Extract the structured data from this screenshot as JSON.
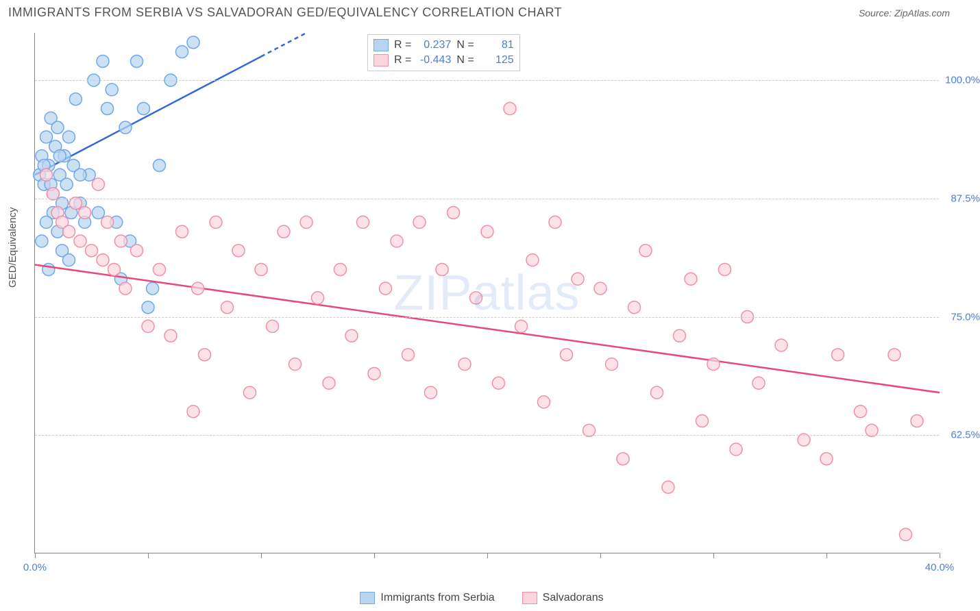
{
  "header": {
    "title": "IMMIGRANTS FROM SERBIA VS SALVADORAN GED/EQUIVALENCY CORRELATION CHART",
    "source_label": "Source: ZipAtlas.com"
  },
  "chart": {
    "type": "scatter",
    "ylabel": "GED/Equivalency",
    "xlim": [
      0,
      40
    ],
    "ylim": [
      50,
      105
    ],
    "x_ticks": [
      0,
      5,
      10,
      15,
      20,
      25,
      30,
      35,
      40
    ],
    "x_tick_labels": {
      "0": "0.0%",
      "40": "40.0%"
    },
    "y_gridlines": [
      62.5,
      75.0,
      87.5,
      100.0
    ],
    "y_tick_labels": [
      "62.5%",
      "75.0%",
      "87.5%",
      "100.0%"
    ],
    "grid_color": "#cccccc",
    "axis_color": "#888888",
    "background_color": "#ffffff",
    "watermark": "ZIPatlas",
    "series": [
      {
        "name": "Immigrants from Serbia",
        "marker_fill": "#b8d4f0",
        "marker_stroke": "#6fa8e8",
        "marker_radius": 9,
        "marker_opacity": 0.7,
        "line_color": "#3168d8",
        "line_width": 2.5,
        "R": "0.237",
        "N": "81",
        "trend": {
          "x1": 0,
          "y1": 90,
          "x2": 12,
          "y2": 105,
          "dash_after_x": 10
        },
        "points": [
          [
            0.2,
            90
          ],
          [
            0.3,
            92
          ],
          [
            0.4,
            89
          ],
          [
            0.5,
            94
          ],
          [
            0.6,
            91
          ],
          [
            0.7,
            96
          ],
          [
            0.8,
            88
          ],
          [
            0.9,
            93
          ],
          [
            1.0,
            95
          ],
          [
            1.1,
            90
          ],
          [
            1.2,
            87
          ],
          [
            1.3,
            92
          ],
          [
            1.4,
            89
          ],
          [
            1.5,
            94
          ],
          [
            1.6,
            86
          ],
          [
            1.7,
            91
          ],
          [
            1.8,
            98
          ],
          [
            2.0,
            87
          ],
          [
            2.2,
            85
          ],
          [
            2.4,
            90
          ],
          [
            2.6,
            100
          ],
          [
            2.8,
            86
          ],
          [
            3.0,
            102
          ],
          [
            3.2,
            97
          ],
          [
            3.4,
            99
          ],
          [
            3.6,
            85
          ],
          [
            3.8,
            79
          ],
          [
            4.0,
            95
          ],
          [
            4.2,
            83
          ],
          [
            4.5,
            102
          ],
          [
            4.8,
            97
          ],
          [
            5.0,
            76
          ],
          [
            5.2,
            78
          ],
          [
            5.5,
            91
          ],
          [
            6.0,
            100
          ],
          [
            6.5,
            103
          ],
          [
            7.0,
            104
          ],
          [
            1.0,
            84
          ],
          [
            1.2,
            82
          ],
          [
            0.8,
            86
          ],
          [
            0.5,
            85
          ],
          [
            0.3,
            83
          ],
          [
            0.6,
            80
          ],
          [
            1.5,
            81
          ],
          [
            2.0,
            90
          ],
          [
            0.4,
            91
          ],
          [
            0.7,
            89
          ],
          [
            1.1,
            92
          ]
        ]
      },
      {
        "name": "Salvadorans",
        "marker_fill": "#fcd5df",
        "marker_stroke": "#f08fa8",
        "marker_radius": 9,
        "marker_opacity": 0.7,
        "line_color": "#e84878",
        "line_width": 2.5,
        "R": "-0.443",
        "N": "125",
        "trend": {
          "x1": 0,
          "y1": 80.5,
          "x2": 40,
          "y2": 67
        },
        "points": [
          [
            0.5,
            90
          ],
          [
            0.8,
            88
          ],
          [
            1.0,
            86
          ],
          [
            1.2,
            85
          ],
          [
            1.5,
            84
          ],
          [
            1.8,
            87
          ],
          [
            2.0,
            83
          ],
          [
            2.2,
            86
          ],
          [
            2.5,
            82
          ],
          [
            2.8,
            89
          ],
          [
            3.0,
            81
          ],
          [
            3.2,
            85
          ],
          [
            3.5,
            80
          ],
          [
            3.8,
            83
          ],
          [
            4.0,
            78
          ],
          [
            4.5,
            82
          ],
          [
            5.0,
            74
          ],
          [
            5.5,
            80
          ],
          [
            6.0,
            73
          ],
          [
            6.5,
            84
          ],
          [
            7.0,
            65
          ],
          [
            7.2,
            78
          ],
          [
            7.5,
            71
          ],
          [
            8.0,
            85
          ],
          [
            8.5,
            76
          ],
          [
            9.0,
            82
          ],
          [
            9.5,
            67
          ],
          [
            10.0,
            80
          ],
          [
            10.5,
            74
          ],
          [
            11.0,
            84
          ],
          [
            11.5,
            70
          ],
          [
            12.0,
            85
          ],
          [
            12.5,
            77
          ],
          [
            13.0,
            68
          ],
          [
            13.5,
            80
          ],
          [
            14.0,
            73
          ],
          [
            14.5,
            85
          ],
          [
            15.0,
            69
          ],
          [
            15.5,
            78
          ],
          [
            16.0,
            83
          ],
          [
            16.5,
            71
          ],
          [
            17.0,
            85
          ],
          [
            17.5,
            67
          ],
          [
            18.0,
            80
          ],
          [
            18.5,
            86
          ],
          [
            19.0,
            70
          ],
          [
            19.5,
            77
          ],
          [
            20.0,
            84
          ],
          [
            20.5,
            68
          ],
          [
            21.0,
            97
          ],
          [
            21.5,
            74
          ],
          [
            22.0,
            81
          ],
          [
            22.5,
            66
          ],
          [
            23.0,
            85
          ],
          [
            23.5,
            71
          ],
          [
            24.0,
            79
          ],
          [
            24.5,
            63
          ],
          [
            25.0,
            78
          ],
          [
            25.5,
            70
          ],
          [
            26.0,
            60
          ],
          [
            26.5,
            76
          ],
          [
            27.0,
            82
          ],
          [
            27.5,
            67
          ],
          [
            28.0,
            57
          ],
          [
            28.5,
            73
          ],
          [
            29.0,
            79
          ],
          [
            29.5,
            64
          ],
          [
            30.0,
            70
          ],
          [
            30.5,
            80
          ],
          [
            31.0,
            61
          ],
          [
            31.5,
            75
          ],
          [
            32.0,
            68
          ],
          [
            33.0,
            72
          ],
          [
            34.0,
            62
          ],
          [
            35.0,
            60
          ],
          [
            35.5,
            71
          ],
          [
            36.5,
            65
          ],
          [
            37.0,
            63
          ],
          [
            38.0,
            71
          ],
          [
            38.5,
            52
          ],
          [
            39.0,
            64
          ]
        ]
      }
    ],
    "stats_box": {
      "rows": [
        {
          "swatch_fill": "#b8d4f0",
          "swatch_stroke": "#6fa8e8",
          "r_label": "R =",
          "r_val": "0.237",
          "n_label": "N =",
          "n_val": "81"
        },
        {
          "swatch_fill": "#fcd5df",
          "swatch_stroke": "#f08fa8",
          "r_label": "R =",
          "r_val": "-0.443",
          "n_label": "N =",
          "n_val": "125"
        }
      ]
    },
    "legend": [
      {
        "swatch_fill": "#b8d4f0",
        "swatch_stroke": "#6fa8e8",
        "label": "Immigrants from Serbia"
      },
      {
        "swatch_fill": "#fcd5df",
        "swatch_stroke": "#f08fa8",
        "label": "Salvadorans"
      }
    ]
  }
}
